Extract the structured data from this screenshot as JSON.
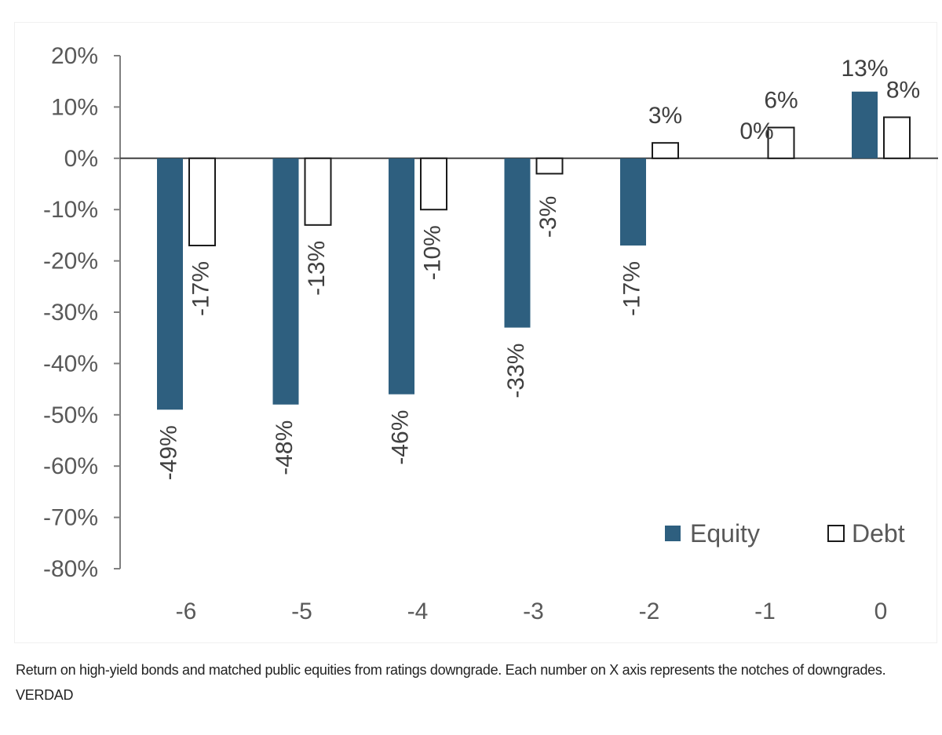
{
  "chart_data": {
    "type": "bar",
    "categories": [
      "-6",
      "-5",
      "-4",
      "-3",
      "-2",
      "-1",
      "0"
    ],
    "series": [
      {
        "name": "Equity",
        "values": [
          -49,
          -48,
          -46,
          -33,
          -17,
          0,
          13
        ],
        "labels": [
          "-49%",
          "-48%",
          "-46%",
          "-33%",
          "-17%",
          "0%",
          "13%"
        ],
        "color": "#2e5f7f"
      },
      {
        "name": "Debt",
        "values": [
          -17,
          -13,
          -10,
          -3,
          3,
          6,
          8
        ],
        "labels": [
          "-17%",
          "-13%",
          "-10%",
          "-3%",
          "3%",
          "6%",
          "8%"
        ],
        "color": "#ffffff"
      }
    ],
    "yticks": [
      "20%",
      "10%",
      "0%",
      "-10%",
      "-20%",
      "-30%",
      "-40%",
      "-50%",
      "-60%",
      "-70%",
      "-80%"
    ],
    "ylim": [
      -80,
      20
    ],
    "title": "",
    "xlabel": "",
    "ylabel": "",
    "legend": "bottom-right",
    "grid": false
  },
  "caption": "Return on high-yield bonds and matched public equities from ratings downgrade. Each number on X axis represents the notches of downgrades. VERDAD"
}
